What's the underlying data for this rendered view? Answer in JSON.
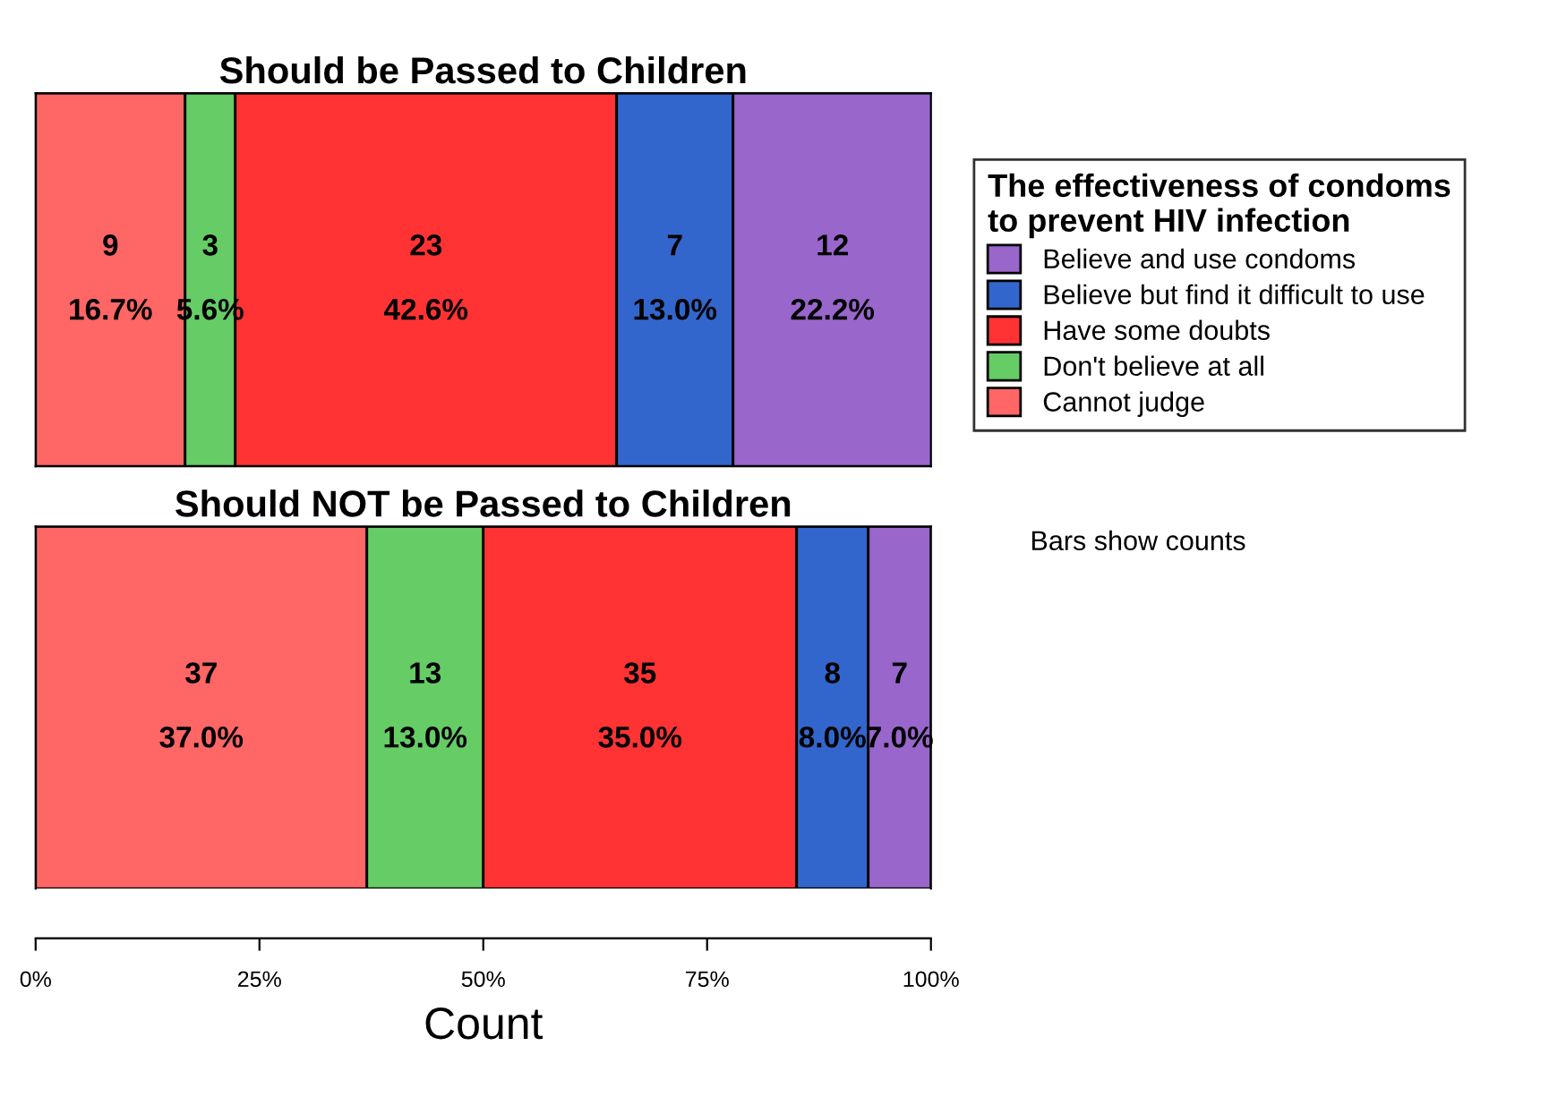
{
  "chart_data": [
    {
      "type": "bar",
      "orientation": "horizontal",
      "stacked": true,
      "title": "Should be Passed to Children",
      "categories": [
        null
      ],
      "xlim": [
        0,
        100
      ],
      "tick_labels": false,
      "legend": "right",
      "legend_title": "The effectiveness of condoms\nto prevent HIV infection",
      "annotations": [
        "Bars show counts"
      ],
      "series": [
        {
          "name": "Cannot judge",
          "color": "#ff6666",
          "values": [
            16.7
          ],
          "value_labels": [
            "9\n\n16.7%"
          ]
        },
        {
          "name": "Don't believe at all",
          "color": "#66cc66",
          "values": [
            5.6
          ],
          "value_labels": [
            "3\n\n5.6%"
          ]
        },
        {
          "name": "Have some doubts",
          "color": "#ff3333",
          "values": [
            42.6
          ],
          "value_labels": [
            "23\n\n42.6%"
          ]
        },
        {
          "name": "Believe but find it difficult to use",
          "color": "#3366cc",
          "values": [
            13.0
          ],
          "value_labels": [
            "7\n\n13.0%"
          ]
        },
        {
          "name": "Believe and use condoms",
          "color": "#9966cc",
          "values": [
            22.2
          ],
          "value_labels": [
            "12\n\n22.2%"
          ]
        }
      ]
    },
    {
      "type": "bar",
      "orientation": "horizontal",
      "stacked": true,
      "title": "Should NOT be Passed to Children",
      "xlabel": "Count",
      "categories": [
        null
      ],
      "xlim": [
        0,
        100
      ],
      "xticks": [
        {
          "value": 0,
          "label": "0%"
        },
        {
          "value": 25,
          "label": "25%"
        },
        {
          "value": 50,
          "label": "50%"
        },
        {
          "value": 75,
          "label": "75%"
        },
        {
          "value": 100,
          "label": "100%"
        }
      ],
      "tick_labels": "x",
      "series": [
        {
          "color": "#ff6666",
          "values": [
            37.0
          ],
          "value_labels": [
            "37\n\n37.0%"
          ]
        },
        {
          "color": "#66cc66",
          "values": [
            13.0
          ],
          "value_labels": [
            "13\n\n13.0%"
          ]
        },
        {
          "color": "#ff3333",
          "values": [
            35.0
          ],
          "value_labels": [
            "35\n\n35.0%"
          ]
        },
        {
          "color": "#3366cc",
          "values": [
            8.0
          ],
          "value_labels": [
            "8\n\n8.0%"
          ]
        },
        {
          "color": "#9966cc",
          "values": [
            7.0
          ],
          "value_labels": [
            "7\n\n7.0%"
          ]
        }
      ]
    }
  ]
}
